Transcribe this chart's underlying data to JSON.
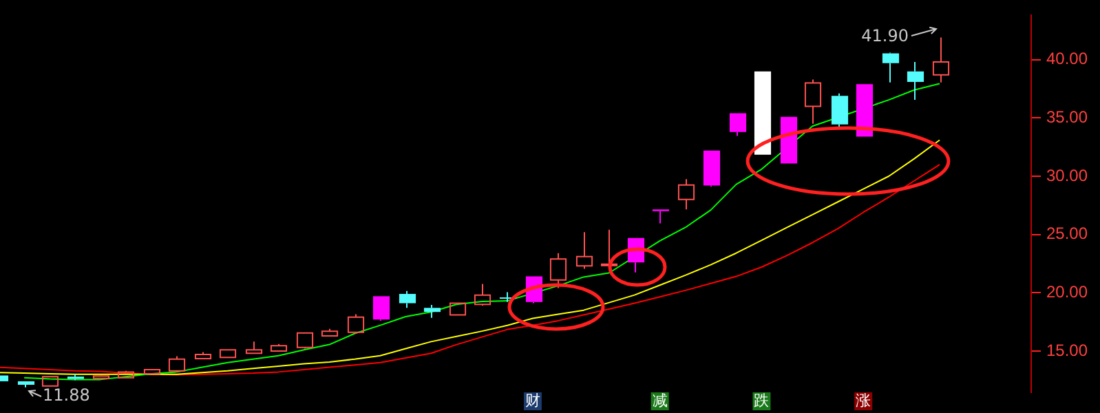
{
  "chart_data": {
    "type": "candlestick",
    "categories": [
      null,
      null,
      null,
      null,
      null,
      null,
      null,
      null,
      null,
      null,
      null,
      null,
      null,
      null,
      null,
      null,
      null,
      null,
      null,
      null,
      null,
      "财",
      null,
      null,
      null,
      null,
      "减",
      null,
      null,
      null,
      "跌",
      null,
      null,
      null,
      "涨",
      null,
      null,
      null
    ],
    "ohlc": [
      [
        12.9,
        13.0,
        12.3,
        12.4
      ],
      [
        12.4,
        12.4,
        11.88,
        12.1
      ],
      [
        12.0,
        12.8,
        12.0,
        12.8
      ],
      [
        12.8,
        13.0,
        12.5,
        12.6
      ],
      [
        12.65,
        12.9,
        12.6,
        12.85
      ],
      [
        12.7,
        13.3,
        12.7,
        13.2
      ],
      [
        13.05,
        13.4,
        13.05,
        13.4
      ],
      [
        13.3,
        14.55,
        13.2,
        14.3
      ],
      [
        14.35,
        14.9,
        14.35,
        14.7
      ],
      [
        14.45,
        15.1,
        14.45,
        15.1
      ],
      [
        14.8,
        15.8,
        14.8,
        15.1
      ],
      [
        15.0,
        15.6,
        15.0,
        15.45
      ],
      [
        15.3,
        16.55,
        15.2,
        16.55
      ],
      [
        16.3,
        16.9,
        16.3,
        16.7
      ],
      [
        16.6,
        18.15,
        16.5,
        17.9
      ],
      [
        19.7,
        19.7,
        17.6,
        17.7
      ],
      [
        19.9,
        20.15,
        18.7,
        19.1
      ],
      [
        18.7,
        18.95,
        17.85,
        18.35
      ],
      [
        18.1,
        19.1,
        18.1,
        19.1
      ],
      [
        19.0,
        20.75,
        18.9,
        19.8
      ],
      [
        19.6,
        20.05,
        19.2,
        19.55
      ],
      [
        21.4,
        21.4,
        19.1,
        19.2
      ],
      [
        21.1,
        23.4,
        20.4,
        22.9
      ],
      [
        22.3,
        25.2,
        22.05,
        23.1
      ],
      [
        22.4,
        25.4,
        22.4,
        22.45
      ],
      [
        24.7,
        24.7,
        21.75,
        22.6
      ],
      [
        27.15,
        27.15,
        25.95,
        27.0
      ],
      [
        28.0,
        29.75,
        27.15,
        29.25
      ],
      [
        32.2,
        32.2,
        29.1,
        29.2
      ],
      [
        35.4,
        35.4,
        33.45,
        33.8
      ],
      [
        39.0,
        39.0,
        31.85,
        31.85
      ],
      [
        35.1,
        35.1,
        31.1,
        31.1
      ],
      [
        36.0,
        38.3,
        34.5,
        38.0
      ],
      [
        36.9,
        37.1,
        34.2,
        34.45
      ],
      [
        37.9,
        37.9,
        33.4,
        33.4
      ],
      [
        40.55,
        40.6,
        38.05,
        39.7
      ],
      [
        39.0,
        39.8,
        36.55,
        38.1
      ],
      [
        38.7,
        41.9,
        38.05,
        39.8
      ]
    ],
    "colors": [
      "#54fcfc",
      "#54fcfc",
      "#ff5050",
      "#54fcfc",
      "#ff5050",
      "#ff5050",
      "#ff5050",
      "#ff5050",
      "#ff5050",
      "#ff5050",
      "#ff5050",
      "#ff5050",
      "#ff5050",
      "#ff5050",
      "#ff5050",
      "#ff00ff",
      "#54fcfc",
      "#54fcfc",
      "#ff5050",
      "#ff5050",
      "#54fcfc",
      "#ff00ff",
      "#ff5050",
      "#ff5050",
      "#ff5050",
      "#ff00ff",
      "#ff00ff",
      "#ff5050",
      "#ff00ff",
      "#ff00ff",
      "#ffffff",
      "#ff00ff",
      "#ff5050",
      "#54fcfc",
      "#ff00ff",
      "#54fcfc",
      "#54fcfc",
      "#ff5050"
    ],
    "series": [
      {
        "type": "line",
        "color": "#00ff00",
        "values": [
          null,
          12.7,
          12.6,
          12.55,
          12.55,
          12.8,
          13.05,
          13.2,
          13.6,
          14.0,
          14.3,
          14.6,
          15.1,
          15.55,
          16.5,
          17.2,
          17.95,
          18.35,
          19.0,
          19.25,
          19.3,
          null,
          20.6,
          21.35,
          21.7,
          null,
          24.45,
          25.6,
          27.1,
          29.3,
          30.6,
          null,
          34.3,
          null,
          null,
          36.55,
          37.4,
          37.95
        ]
      },
      {
        "type": "line",
        "color": "#ffff00",
        "values": [
          13.15,
          13.1,
          13.05,
          13.0,
          13.0,
          13.0,
          13.0,
          13.0,
          13.15,
          13.3,
          13.5,
          13.7,
          13.9,
          14.05,
          14.3,
          14.6,
          15.2,
          15.8,
          16.25,
          16.7,
          17.2,
          17.8,
          18.15,
          18.5,
          19.15,
          19.8,
          20.65,
          21.5,
          22.4,
          23.4,
          24.5,
          25.6,
          26.7,
          27.8,
          28.9,
          30.0,
          31.5,
          33.1
        ]
      },
      {
        "type": "line",
        "color": "#ff0000",
        "values": [
          13.6,
          13.5,
          13.4,
          13.3,
          13.25,
          13.1,
          13.0,
          12.95,
          13.0,
          13.05,
          13.1,
          13.2,
          13.4,
          13.6,
          13.8,
          14.0,
          14.4,
          14.8,
          15.55,
          16.2,
          16.85,
          17.2,
          17.6,
          18.1,
          18.6,
          19.1,
          19.65,
          20.2,
          20.8,
          21.4,
          22.2,
          23.2,
          24.3,
          25.5,
          26.9,
          28.2,
          29.6,
          31.0
        ]
      }
    ],
    "ylim": [
      11.45,
      43.8
    ],
    "yticks": [
      {
        "value": 15,
        "label": "15.00"
      },
      {
        "value": 20,
        "label": "20.00"
      },
      {
        "value": 25,
        "label": "25.00"
      },
      {
        "value": 30,
        "label": "30.00"
      },
      {
        "value": 35,
        "label": "35.00"
      },
      {
        "value": 40,
        "label": "40.00"
      }
    ],
    "marker": "none",
    "annotations": [
      "41.90",
      "11.88"
    ]
  }
}
